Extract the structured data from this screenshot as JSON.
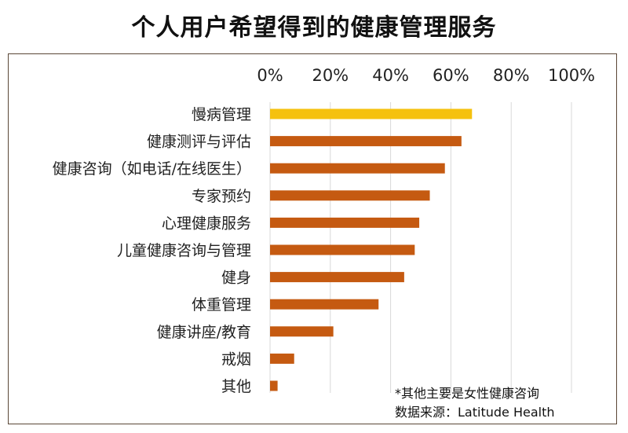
{
  "chart_data": {
    "type": "bar",
    "orientation": "horizontal",
    "title": "个人用户希望得到的健康管理服务",
    "categories": [
      "慢病管理",
      "健康测评与评估",
      "健康咨询（如电话/在线医生）",
      "专家预约",
      "心理健康服务",
      "儿童健康咨询与管理",
      "健身",
      "体重管理",
      "健康讲座/教育",
      "戒烟",
      "其他"
    ],
    "values": [
      0.67,
      0.635,
      0.58,
      0.53,
      0.495,
      0.48,
      0.445,
      0.36,
      0.21,
      0.08,
      0.025
    ],
    "xlim": [
      0,
      1
    ],
    "x_ticks": [
      "0%",
      "20%",
      "40%",
      "60%",
      "80%",
      "100%"
    ],
    "x_axis_position": "top",
    "grid": true,
    "colors": {
      "highlight": "#F5C10E",
      "bar": "#C55A11",
      "grid": "#D9D9D9"
    },
    "highlight_index": 0
  },
  "notes": {
    "line1": "*其他主要是女性健康咨询",
    "line2": "数据来源：Latitude Health"
  }
}
